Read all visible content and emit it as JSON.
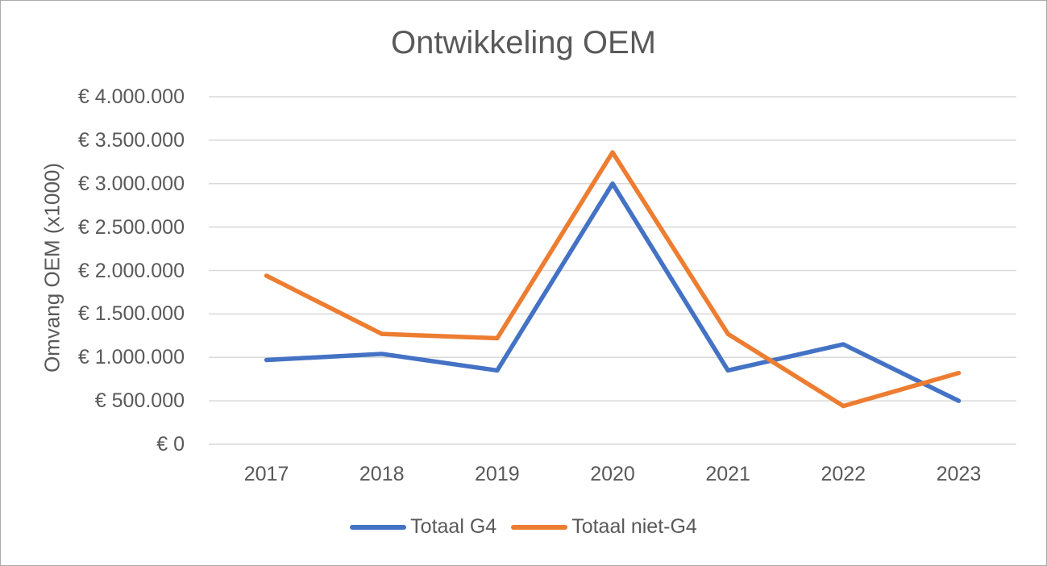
{
  "chart_data": {
    "type": "line",
    "title": "Ontwikkeling OEM",
    "xlabel": "",
    "ylabel": "Omvang OEM (x1000)",
    "categories": [
      "2017",
      "2018",
      "2019",
      "2020",
      "2021",
      "2022",
      "2023"
    ],
    "series": [
      {
        "name": "Totaal G4",
        "color": "#4472C4",
        "values": [
          970000,
          1040000,
          850000,
          3000000,
          850000,
          1150000,
          500000
        ]
      },
      {
        "name": "Totaal niet-G4",
        "color": "#ED7D31",
        "values": [
          1940000,
          1270000,
          1220000,
          3360000,
          1270000,
          440000,
          820000
        ]
      }
    ],
    "ylim": [
      0,
      4000000
    ],
    "ytick_step": 500000,
    "ytick_labels": [
      "€ 0",
      "€ 500.000",
      "€ 1.000.000",
      "€ 1.500.000",
      "€ 2.000.000",
      "€ 2.500.000",
      "€ 3.000.000",
      "€ 3.500.000",
      "€ 4.000.000"
    ],
    "grid": true,
    "legend_position": "bottom",
    "colors": {
      "text": "#595959",
      "gridline": "#D9D9D9",
      "frame_border": "#ABABAB",
      "background": "#FFFFFF"
    }
  }
}
